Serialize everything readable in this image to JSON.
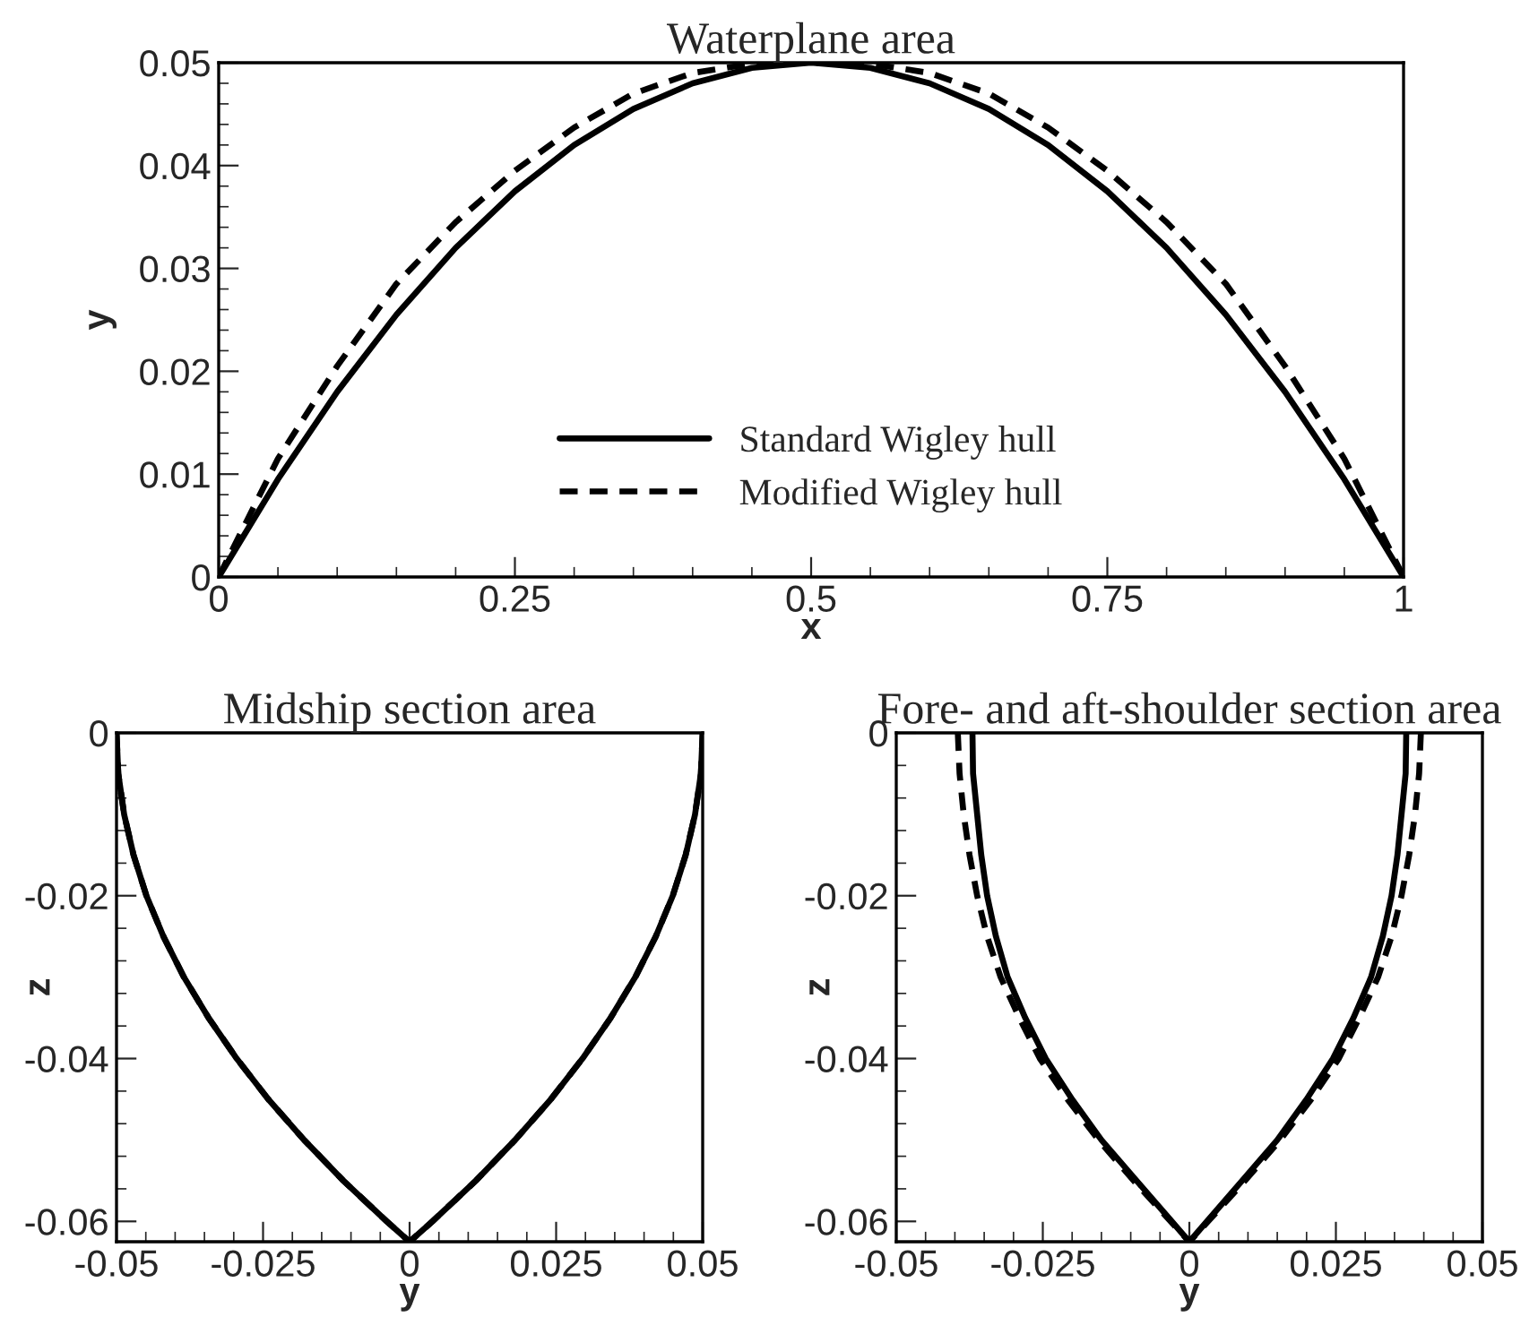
{
  "chart_data": [
    {
      "type": "line",
      "title": "Waterplane area",
      "xlabel": "x",
      "ylabel": "y",
      "xlim": [
        0,
        1
      ],
      "ylim": [
        0,
        0.05
      ],
      "xticks": [
        0,
        0.25,
        0.5,
        0.75,
        1
      ],
      "yticks": [
        0,
        0.01,
        0.02,
        0.03,
        0.04,
        0.05
      ],
      "legend": "bottom",
      "grid": false,
      "series": [
        {
          "name": "Standard Wigley hull",
          "color": "#000000",
          "line_style": "solid",
          "x": [
            0,
            0.05,
            0.1,
            0.15,
            0.2,
            0.25,
            0.3,
            0.35,
            0.4,
            0.45,
            0.5,
            0.55,
            0.6,
            0.65,
            0.7,
            0.75,
            0.8,
            0.85,
            0.9,
            0.95,
            1
          ],
          "values": [
            0,
            0.0095,
            0.018,
            0.0255,
            0.032,
            0.0375,
            0.042,
            0.0455,
            0.048,
            0.0495,
            0.05,
            0.0495,
            0.048,
            0.0455,
            0.042,
            0.0375,
            0.032,
            0.0255,
            0.018,
            0.0095,
            0
          ]
        },
        {
          "name": "Modified Wigley hull",
          "color": "#000000",
          "line_style": "dashed",
          "x": [
            0,
            0.05,
            0.1,
            0.15,
            0.2,
            0.25,
            0.3,
            0.35,
            0.4,
            0.45,
            0.5,
            0.55,
            0.6,
            0.65,
            0.7,
            0.75,
            0.8,
            0.85,
            0.9,
            0.95,
            1
          ],
          "values": [
            0,
            0.0115,
            0.0205,
            0.0285,
            0.0345,
            0.0395,
            0.0437,
            0.047,
            0.049,
            0.0499,
            0.05,
            0.0499,
            0.049,
            0.047,
            0.0437,
            0.0395,
            0.0345,
            0.0285,
            0.0205,
            0.0115,
            0
          ]
        }
      ]
    },
    {
      "type": "line",
      "title": "Midship section area",
      "xlabel": "y",
      "ylabel": "z",
      "xlim": [
        -0.05,
        0.05
      ],
      "ylim": [
        -0.0625,
        0
      ],
      "xticks": [
        -0.05,
        -0.025,
        0,
        0.025,
        0.05
      ],
      "yticks": [
        -0.06,
        -0.04,
        -0.02,
        0
      ],
      "grid": false,
      "series": [
        {
          "color": "#000000",
          "line_style": "dashed",
          "x": [
            -0.05,
            -0.0497,
            -0.0487,
            -0.0471,
            -0.0449,
            -0.042,
            -0.0385,
            -0.0343,
            -0.0295,
            -0.0241,
            -0.018,
            -0.0113,
            -0.0039,
            0,
            0.0039,
            0.0113,
            0.018,
            0.0241,
            0.0295,
            0.0343,
            0.0385,
            0.042,
            0.0449,
            0.0471,
            0.0487,
            0.0497,
            0.05
          ],
          "values": [
            0,
            -0.005,
            -0.01,
            -0.015,
            -0.02,
            -0.025,
            -0.03,
            -0.035,
            -0.04,
            -0.045,
            -0.05,
            -0.055,
            -0.06,
            -0.0625,
            -0.06,
            -0.055,
            -0.05,
            -0.045,
            -0.04,
            -0.035,
            -0.03,
            -0.025,
            -0.02,
            -0.015,
            -0.01,
            -0.005,
            0
          ]
        },
        {
          "color": "#000000",
          "line_style": "solid",
          "x": [
            -0.05,
            -0.0497,
            -0.0487,
            -0.0471,
            -0.0449,
            -0.042,
            -0.0385,
            -0.0343,
            -0.0295,
            -0.0241,
            -0.018,
            -0.0113,
            -0.0039,
            0,
            0.0039,
            0.0113,
            0.018,
            0.0241,
            0.0295,
            0.0343,
            0.0385,
            0.042,
            0.0449,
            0.0471,
            0.0487,
            0.0497,
            0.05
          ],
          "values": [
            0,
            -0.005,
            -0.01,
            -0.015,
            -0.02,
            -0.025,
            -0.03,
            -0.035,
            -0.04,
            -0.045,
            -0.05,
            -0.055,
            -0.06,
            -0.0625,
            -0.06,
            -0.055,
            -0.05,
            -0.045,
            -0.04,
            -0.035,
            -0.03,
            -0.025,
            -0.02,
            -0.015,
            -0.01,
            -0.005,
            0
          ]
        }
      ]
    },
    {
      "type": "line",
      "title": "Fore- and aft-shoulder section area",
      "xlabel": "y",
      "ylabel": "z",
      "xlim": [
        -0.05,
        0.05
      ],
      "ylim": [
        -0.0625,
        0
      ],
      "xticks": [
        -0.05,
        -0.025,
        0,
        0.025,
        0.05
      ],
      "yticks": [
        -0.06,
        -0.04,
        -0.02,
        0
      ],
      "grid": false,
      "series": [
        {
          "color": "#000000",
          "line_style": "dashed",
          "x": [
            -0.0395,
            -0.0392,
            -0.0385,
            -0.0375,
            -0.0362,
            -0.0345,
            -0.0322,
            -0.029,
            -0.0255,
            -0.0208,
            -0.0155,
            -0.0095,
            -0.0032,
            0,
            0.0032,
            0.0095,
            0.0155,
            0.0208,
            0.0255,
            0.029,
            0.0322,
            0.0345,
            0.0362,
            0.0375,
            0.0385,
            0.0392,
            0.0395
          ],
          "values": [
            0,
            -0.005,
            -0.01,
            -0.015,
            -0.02,
            -0.025,
            -0.03,
            -0.035,
            -0.04,
            -0.045,
            -0.05,
            -0.055,
            -0.06,
            -0.0625,
            -0.06,
            -0.055,
            -0.05,
            -0.045,
            -0.04,
            -0.035,
            -0.03,
            -0.025,
            -0.02,
            -0.015,
            -0.01,
            -0.005,
            0
          ]
        },
        {
          "color": "#000000",
          "line_style": "solid",
          "x": [
            -0.037,
            -0.0369,
            -0.0362,
            -0.0355,
            -0.0345,
            -0.033,
            -0.031,
            -0.028,
            -0.0245,
            -0.02,
            -0.015,
            -0.009,
            -0.003,
            0,
            0.003,
            0.009,
            0.015,
            0.02,
            0.0245,
            0.028,
            0.031,
            0.033,
            0.0345,
            0.0355,
            0.0362,
            0.0369,
            0.037
          ],
          "values": [
            0,
            -0.005,
            -0.01,
            -0.015,
            -0.02,
            -0.025,
            -0.03,
            -0.035,
            -0.04,
            -0.045,
            -0.05,
            -0.055,
            -0.06,
            -0.0625,
            -0.06,
            -0.055,
            -0.05,
            -0.045,
            -0.04,
            -0.035,
            -0.03,
            -0.025,
            -0.02,
            -0.015,
            -0.01,
            -0.005,
            0
          ]
        }
      ]
    }
  ]
}
